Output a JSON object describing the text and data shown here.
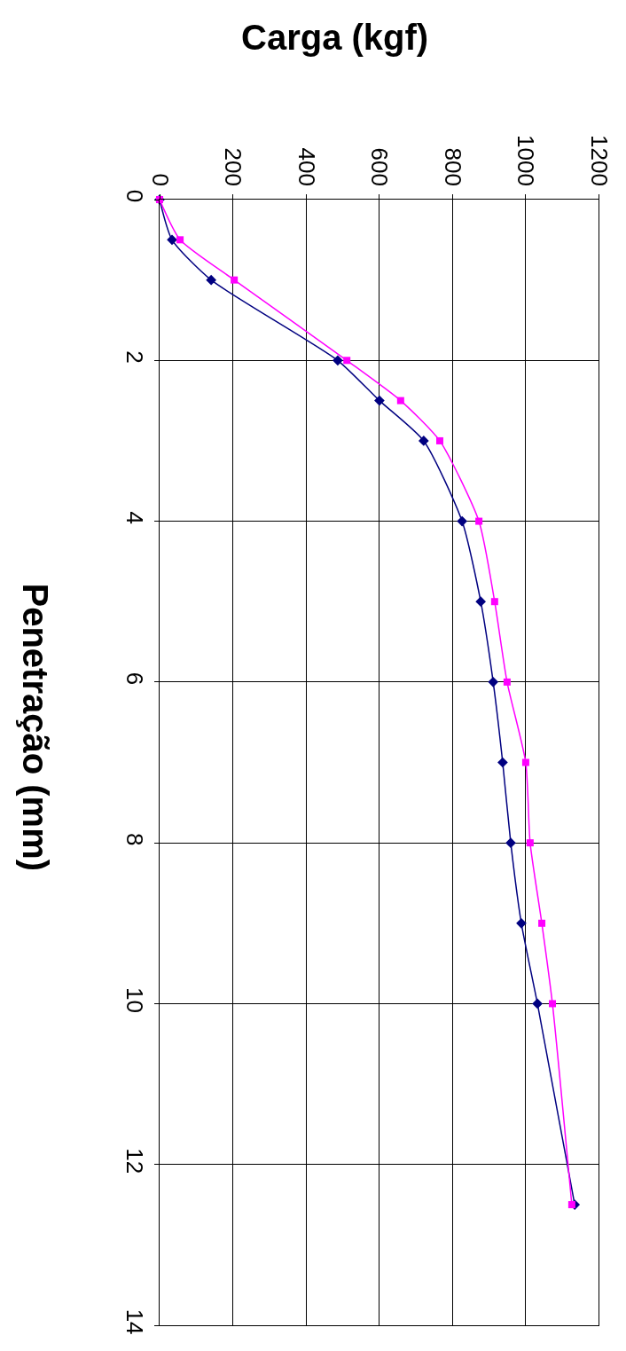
{
  "chart_data": {
    "type": "line",
    "xlabel": "Carga (kgf)",
    "ylabel": "Penetração (mm)",
    "series": [
      {
        "color": "#000080",
        "marker": "diamond",
        "x": [
          0,
          34,
          141,
          487,
          601,
          722,
          827,
          878,
          912,
          938,
          960,
          989,
          1033,
          1135
        ],
        "values": [
          0,
          0.5,
          1,
          2,
          2.5,
          3,
          4,
          5,
          6,
          7,
          8,
          9,
          10,
          12.5
        ]
      },
      {
        "color": "#ff00ff",
        "marker": "square",
        "x": [
          0,
          56,
          204,
          512,
          659,
          766,
          873,
          916,
          950,
          1001,
          1013,
          1045,
          1074,
          1127
        ],
        "values": [
          0,
          0.5,
          1,
          2,
          2.5,
          3,
          4,
          5,
          6,
          7,
          8,
          9,
          10,
          12.5
        ]
      }
    ],
    "xlim": [
      0,
      1200
    ],
    "xticks": [
      0,
      200,
      400,
      600,
      800,
      1000,
      1200
    ],
    "ylim": [
      14,
      0
    ],
    "yticks": [
      0,
      2,
      4,
      6,
      8,
      10,
      12,
      14
    ],
    "grid": true,
    "line_style": "solid"
  }
}
